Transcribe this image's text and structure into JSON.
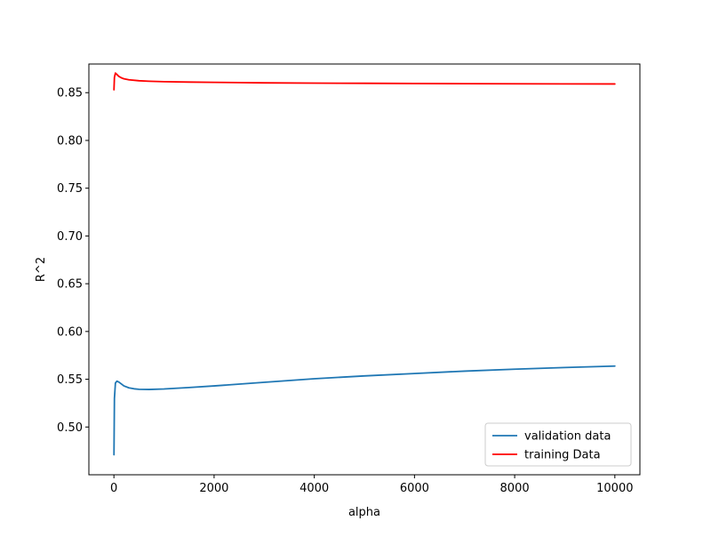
{
  "chart_data": {
    "type": "line",
    "title": "",
    "xlabel": "alpha",
    "ylabel": "R^2",
    "xlim": [
      -500,
      10500
    ],
    "ylim": [
      0.45,
      0.88
    ],
    "xticks": [
      0,
      2000,
      4000,
      6000,
      8000,
      10000
    ],
    "xtick_labels": [
      "0",
      "2000",
      "4000",
      "6000",
      "8000",
      "10000"
    ],
    "yticks": [
      0.5,
      0.55,
      0.6,
      0.65,
      0.7,
      0.75,
      0.8,
      0.85
    ],
    "ytick_labels": [
      "0.50",
      "0.55",
      "0.60",
      "0.65",
      "0.70",
      "0.75",
      "0.80",
      "0.85"
    ],
    "grid": false,
    "legend_placement": "lower-right",
    "series": [
      {
        "name": "validation data",
        "color": "#1f77b4",
        "x": [
          1,
          10,
          30,
          60,
          100,
          150,
          200,
          300,
          400,
          500,
          700,
          1000,
          1500,
          2000,
          3000,
          4000,
          5000,
          6000,
          7000,
          8000,
          9000,
          10000
        ],
        "y": [
          0.471,
          0.53,
          0.546,
          0.548,
          0.547,
          0.545,
          0.543,
          0.541,
          0.54,
          0.5395,
          0.5393,
          0.5398,
          0.5413,
          0.543,
          0.5468,
          0.5505,
          0.5535,
          0.556,
          0.5585,
          0.5605,
          0.5623,
          0.5638
        ]
      },
      {
        "name": "training Data",
        "color": "#ff0000",
        "x": [
          1,
          10,
          30,
          60,
          100,
          150,
          200,
          300,
          500,
          700,
          1000,
          1500,
          2000,
          3000,
          4000,
          5000,
          6000,
          7000,
          8000,
          9000,
          10000
        ],
        "y": [
          0.853,
          0.866,
          0.8705,
          0.869,
          0.867,
          0.8655,
          0.8645,
          0.8635,
          0.8625,
          0.862,
          0.8615,
          0.8611,
          0.8608,
          0.8603,
          0.86,
          0.8598,
          0.8596,
          0.8594,
          0.8593,
          0.8592,
          0.8591
        ]
      }
    ]
  }
}
